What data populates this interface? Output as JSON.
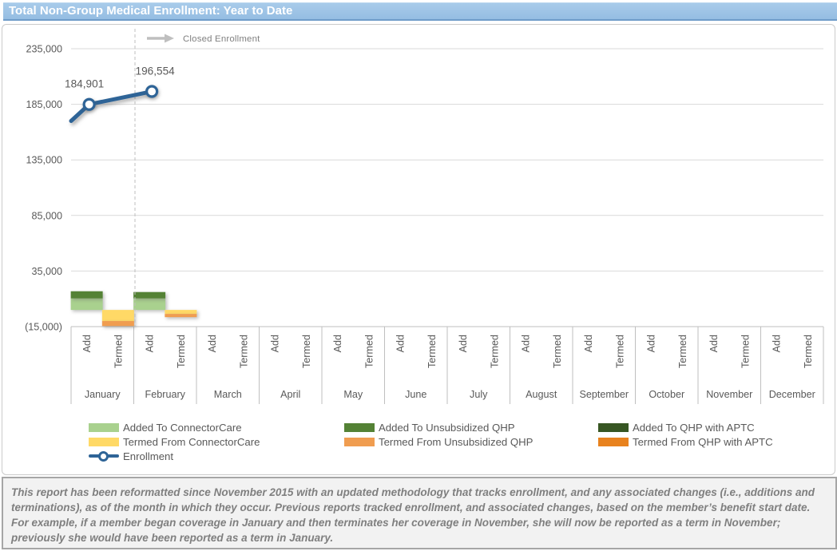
{
  "header": {
    "title": "Total Non-Group Medical Enrollment: Year to Date"
  },
  "annotation": {
    "label": "Closed Enrollment"
  },
  "legend": {
    "items": [
      {
        "label": "Added To ConnectorCare",
        "color": "#A9D18E",
        "type": "swatch"
      },
      {
        "label": "Termed From ConnectorCare",
        "color": "#FFD966",
        "type": "swatch"
      },
      {
        "label": "Enrollment",
        "color": "#2E6497",
        "type": "line-marker"
      },
      {
        "label": "Added To Unsubsidized QHP",
        "color": "#548235",
        "type": "swatch"
      },
      {
        "label": "Termed From Unsubsidized QHP",
        "color": "#F09D50",
        "type": "swatch"
      },
      {
        "label": "Added To QHP with APTC",
        "color": "#375623",
        "type": "swatch"
      },
      {
        "label": "Termed From QHP with APTC",
        "color": "#E8821E",
        "type": "swatch"
      }
    ]
  },
  "footer": {
    "text": "This report has been reformatted since November 2015 with an updated methodology that tracks enrollment, and any associated changes (i.e., additions and terminations), as of the month in which they occur.  Previous reports tracked enrollment, and associated changes, based on the member’s benefit start date.  For example, if a member began coverage in January and then terminates her coverage in November, she will now be reported as a term in November; previously she would have been reported as a term in January."
  },
  "chart_data": {
    "type": "combo: stacked bar + line",
    "title": "Total Non-Group Medical Enrollment: Year to Date",
    "legend_position": "bottom",
    "grid": true,
    "y_axis": {
      "min": -15000,
      "max": 235000,
      "ticks": [
        -15000,
        35000,
        85000,
        135000,
        185000,
        235000
      ],
      "tick_labels": [
        "(15,000)",
        "35,000",
        "85,000",
        "135,000",
        "185,000",
        "235,000"
      ]
    },
    "categories": [
      "January",
      "February",
      "March",
      "April",
      "May",
      "June",
      "July",
      "August",
      "September",
      "October",
      "November",
      "December"
    ],
    "sub_categories": [
      "Add",
      "Termed"
    ],
    "bar_series": [
      {
        "name": "Added To ConnectorCare",
        "group": "Add",
        "color": "#A9D18E",
        "values": [
          10400,
          10400,
          0,
          0,
          0,
          0,
          0,
          0,
          0,
          0,
          0,
          0
        ]
      },
      {
        "name": "Added To Unsubsidized QHP",
        "group": "Add",
        "color": "#548235",
        "values": [
          6400,
          5700,
          0,
          0,
          0,
          0,
          0,
          0,
          0,
          0,
          0,
          0
        ]
      },
      {
        "name": "Added To QHP with APTC",
        "group": "Add",
        "color": "#375623",
        "values": [
          0,
          0,
          0,
          0,
          0,
          0,
          0,
          0,
          0,
          0,
          0,
          0
        ]
      },
      {
        "name": "Termed From ConnectorCare",
        "group": "Termed",
        "color": "#FFD966",
        "values": [
          -10000,
          -3600,
          0,
          0,
          0,
          0,
          0,
          0,
          0,
          0,
          0,
          0
        ]
      },
      {
        "name": "Termed From Unsubsidized QHP",
        "group": "Termed",
        "color": "#F09D50",
        "values": [
          -4500,
          -2900,
          0,
          0,
          0,
          0,
          0,
          0,
          0,
          0,
          0,
          0
        ]
      },
      {
        "name": "Termed From QHP with APTC",
        "group": "Termed",
        "color": "#E8821E",
        "values": [
          0,
          0,
          0,
          0,
          0,
          0,
          0,
          0,
          0,
          0,
          0,
          0
        ]
      }
    ],
    "line_series": {
      "name": "Enrollment",
      "color": "#2E6497",
      "lead_in_value": 170000,
      "values": [
        184901,
        196554,
        null,
        null,
        null,
        null,
        null,
        null,
        null,
        null,
        null,
        null
      ],
      "data_labels": [
        "184,901",
        "196,554"
      ]
    },
    "annotation": {
      "label": "Closed Enrollment",
      "at_boundary_after_month": "January"
    }
  }
}
